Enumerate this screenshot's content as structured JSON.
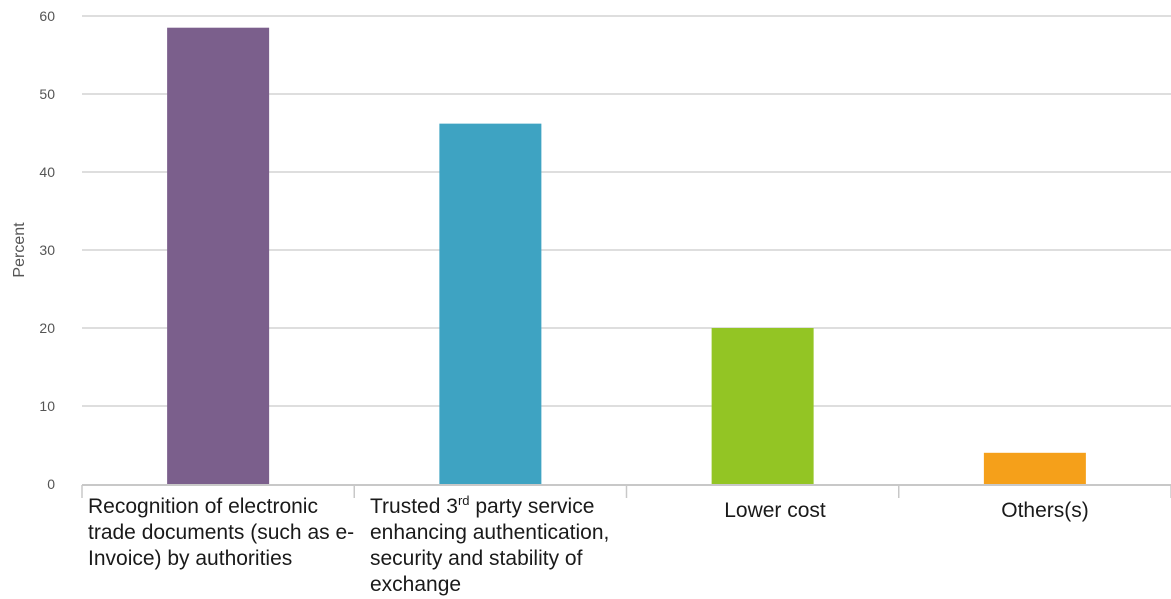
{
  "chart_data": {
    "type": "bar",
    "ylabel": "Percent",
    "ylim": [
      0,
      60
    ],
    "yticks": [
      "0",
      "10",
      "20",
      "30",
      "40",
      "50",
      "60"
    ],
    "grid": true,
    "categories": [
      {
        "pre": "Recognition of electronic trade documents (such as e-Invoice) by authorities",
        "sup": "",
        "post": ""
      },
      {
        "pre": "Trusted 3",
        "sup": "rd",
        "post": " party service enhancing authentication, security and stability of exchange"
      },
      {
        "pre": "Lower cost",
        "sup": "",
        "post": ""
      },
      {
        "pre": "Others(s)",
        "sup": "",
        "post": ""
      }
    ],
    "values": [
      58.5,
      46.2,
      20.0,
      4.0
    ],
    "colors": [
      "#7b5f8c",
      "#3ea3c2",
      "#93c524",
      "#f5a01a"
    ]
  }
}
